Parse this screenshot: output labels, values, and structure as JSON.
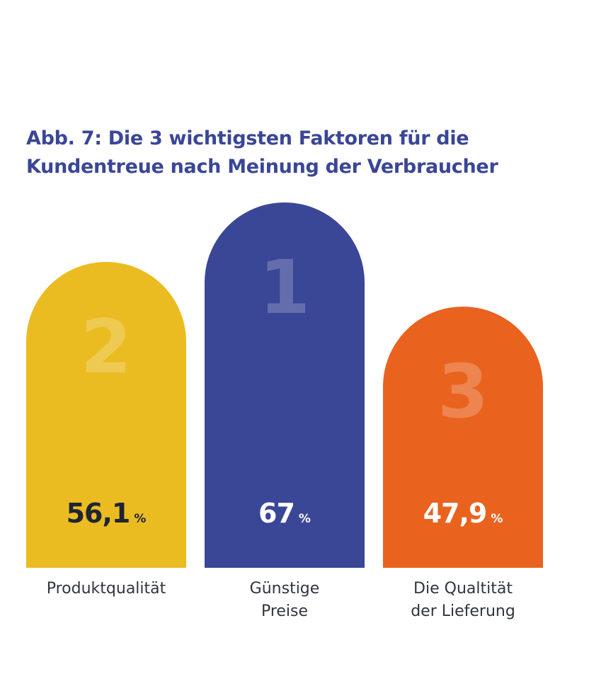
{
  "colors": {
    "title": "#3a4696",
    "label_text": "#2f3540"
  },
  "chart_data": {
    "type": "bar",
    "title_lines": [
      "Abb. 7: Die 3 wichtigsten Faktoren für die",
      "Kundentreue nach Meinung der Verbraucher"
    ],
    "unit": "%",
    "bars": [
      {
        "rank": "2",
        "value": 56.1,
        "value_label": "56,1",
        "category_lines": [
          "Produktqualität"
        ],
        "color": "#ebbc22",
        "value_color": "#1f2433"
      },
      {
        "rank": "1",
        "value": 67,
        "value_label": "67",
        "category_lines": [
          "Günstige",
          "Preise"
        ],
        "color": "#3a4696",
        "value_color": "#ffffff"
      },
      {
        "rank": "3",
        "value": 47.9,
        "value_label": "47,9",
        "category_lines": [
          "Die Qualtität",
          "der Lieferung"
        ],
        "color": "#e9621e",
        "value_color": "#ffffff"
      }
    ]
  }
}
